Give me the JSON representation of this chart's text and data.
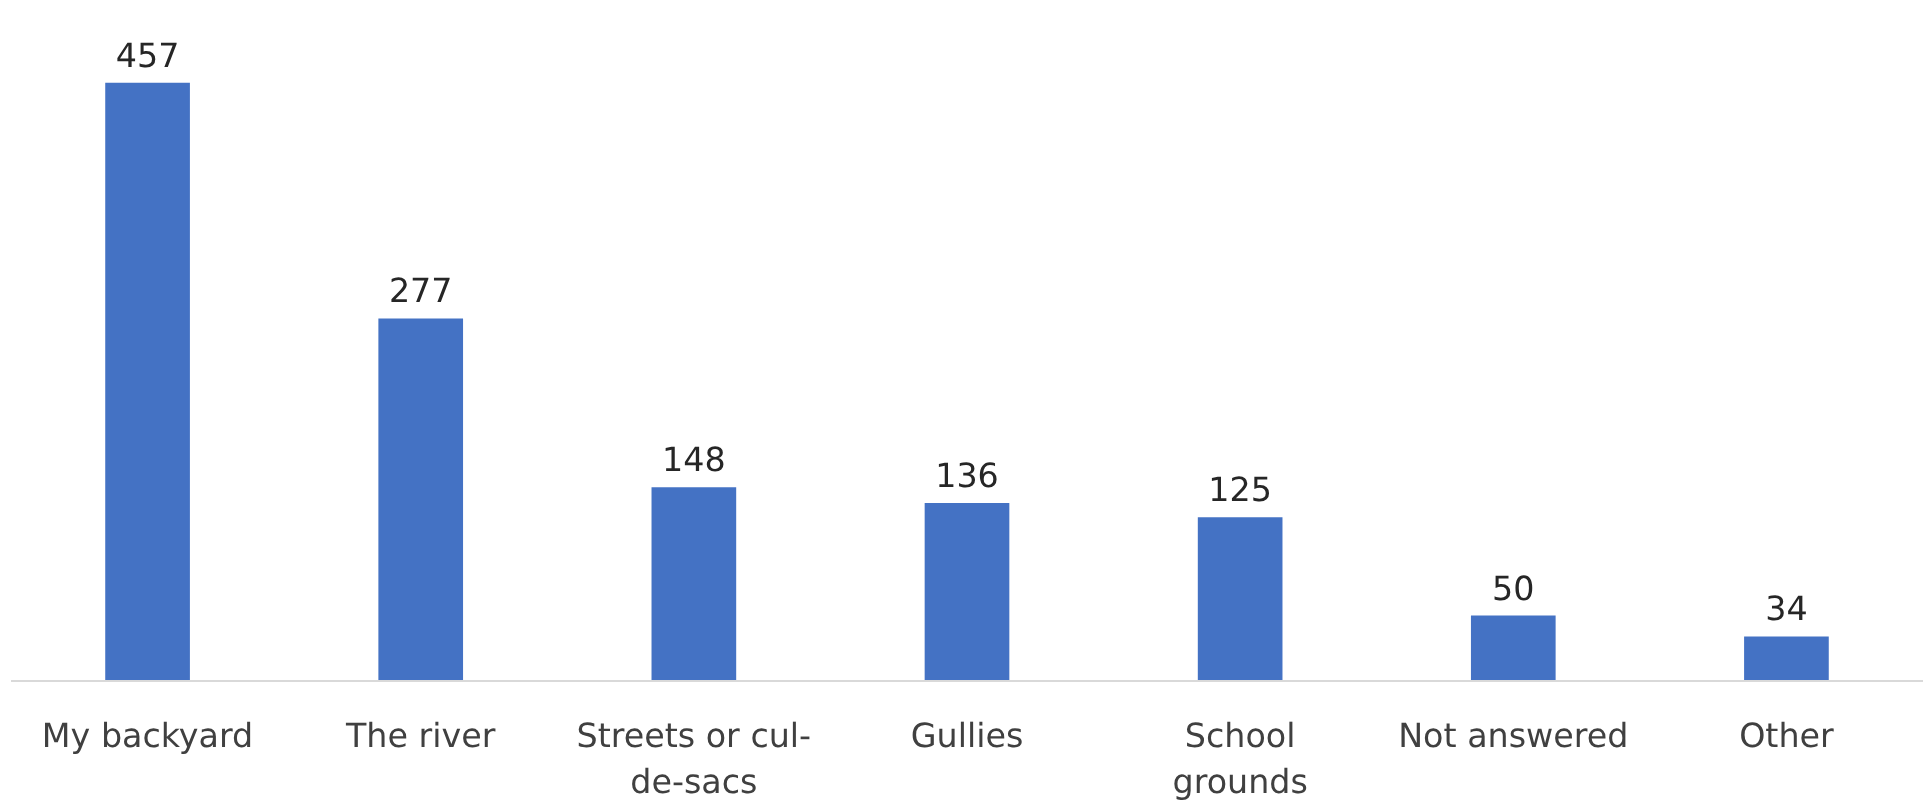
{
  "chart_data": {
    "type": "bar",
    "categories": [
      "My backyard",
      "The river",
      "Streets or cul-de-sacs",
      "Gullies",
      "School grounds",
      "Not answered",
      "Other"
    ],
    "values": [
      457,
      277,
      148,
      136,
      125,
      50,
      34
    ],
    "color": "#4472c4",
    "data_labels": true,
    "grid": false
  }
}
